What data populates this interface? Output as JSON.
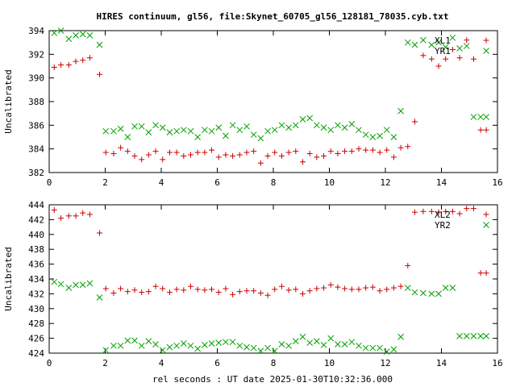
{
  "title": "HIRES continuum, gl56, file:Skynet_60705_gl56_128181_78035.cyb.txt",
  "xlabel": "rel seconds : UT date 2025-01-30T10:32:36.000",
  "colors": {
    "red": "#cc0000",
    "green": "#00a000",
    "axis": "#000000"
  },
  "chart_data": [
    {
      "type": "scatter",
      "ylabel": "Uncalibrated",
      "xlim": [
        0,
        16
      ],
      "ylim": [
        382,
        394
      ],
      "xticks": [
        "0",
        "2",
        "4",
        "6",
        "8",
        "10",
        "12",
        "14",
        "16"
      ],
      "yticks": [
        "382",
        "384",
        "386",
        "388",
        "390",
        "392",
        "394"
      ],
      "grid": false,
      "legend": "top-right",
      "series": [
        {
          "name": "XL1",
          "marker": "plus",
          "color": "#cc0000",
          "x": [
            0.18,
            0.42,
            0.7,
            0.95,
            1.2,
            1.45,
            1.8,
            2.02,
            2.3,
            2.55,
            2.8,
            3.05,
            3.3,
            3.55,
            3.8,
            4.05,
            4.3,
            4.55,
            4.8,
            5.05,
            5.3,
            5.55,
            5.8,
            6.05,
            6.3,
            6.55,
            6.8,
            7.05,
            7.3,
            7.55,
            7.8,
            8.05,
            8.3,
            8.55,
            8.8,
            9.05,
            9.3,
            9.55,
            9.8,
            10.05,
            10.3,
            10.55,
            10.8,
            11.05,
            11.3,
            11.55,
            11.8,
            12.05,
            12.3,
            12.55,
            12.8,
            13.05,
            13.35,
            13.65,
            13.9,
            14.15,
            14.4,
            14.65,
            14.9,
            15.15,
            15.4,
            15.6
          ],
          "y": [
            390.9,
            391.1,
            391.1,
            391.4,
            391.5,
            391.7,
            390.3,
            383.7,
            383.6,
            384.1,
            383.8,
            383.4,
            383.1,
            383.5,
            383.8,
            383.1,
            383.7,
            383.7,
            383.4,
            383.5,
            383.7,
            383.7,
            383.9,
            383.3,
            383.5,
            383.4,
            383.5,
            383.7,
            383.8,
            382.8,
            383.4,
            383.7,
            383.4,
            383.7,
            383.8,
            382.9,
            383.6,
            383.3,
            383.4,
            383.8,
            383.6,
            383.8,
            383.8,
            384.0,
            383.9,
            383.9,
            383.7,
            383.9,
            383.3,
            384.1,
            384.2,
            386.3,
            391.9,
            391.6,
            391.0,
            391.6,
            392.4,
            391.7,
            393.2,
            391.6,
            385.6,
            385.6
          ]
        },
        {
          "name": "YR1",
          "marker": "cross",
          "color": "#00a000",
          "x": [
            0.18,
            0.42,
            0.7,
            0.95,
            1.2,
            1.45,
            1.8,
            2.02,
            2.3,
            2.55,
            2.8,
            3.05,
            3.3,
            3.55,
            3.8,
            4.05,
            4.3,
            4.55,
            4.8,
            5.05,
            5.3,
            5.55,
            5.8,
            6.05,
            6.3,
            6.55,
            6.8,
            7.05,
            7.3,
            7.55,
            7.8,
            8.05,
            8.3,
            8.55,
            8.8,
            9.05,
            9.3,
            9.55,
            9.8,
            10.05,
            10.3,
            10.55,
            10.8,
            11.05,
            11.3,
            11.55,
            11.8,
            12.05,
            12.3,
            12.55,
            12.8,
            13.05,
            13.35,
            13.65,
            13.9,
            14.15,
            14.4,
            14.65,
            14.9,
            15.15,
            15.4,
            15.6
          ],
          "y": [
            393.8,
            394.0,
            393.3,
            393.6,
            393.7,
            393.6,
            392.8,
            385.5,
            385.5,
            385.7,
            385.0,
            385.9,
            385.9,
            385.4,
            386.0,
            385.8,
            385.4,
            385.5,
            385.6,
            385.5,
            385.0,
            385.6,
            385.5,
            385.8,
            385.1,
            386.0,
            385.6,
            385.9,
            385.2,
            384.9,
            385.5,
            385.6,
            386.0,
            385.8,
            386.0,
            386.5,
            386.6,
            386.0,
            385.8,
            385.6,
            386.0,
            385.8,
            386.1,
            385.6,
            385.2,
            385.0,
            385.1,
            385.6,
            385.0,
            387.2,
            393.0,
            392.8,
            393.2,
            392.8,
            393.0,
            392.6,
            393.4,
            392.5,
            392.7,
            386.7,
            386.7,
            386.7
          ]
        }
      ]
    },
    {
      "type": "scatter",
      "ylabel": "Uncalibrated",
      "xlim": [
        0,
        16
      ],
      "ylim": [
        424,
        444
      ],
      "xticks": [
        "0",
        "2",
        "4",
        "6",
        "8",
        "10",
        "12",
        "14",
        "16"
      ],
      "yticks": [
        "424",
        "426",
        "428",
        "430",
        "432",
        "434",
        "436",
        "438",
        "440",
        "442",
        "444"
      ],
      "grid": false,
      "legend": "top-right",
      "series": [
        {
          "name": "XL2",
          "marker": "plus",
          "color": "#cc0000",
          "x": [
            0.18,
            0.42,
            0.7,
            0.95,
            1.2,
            1.45,
            1.8,
            2.02,
            2.3,
            2.55,
            2.8,
            3.05,
            3.3,
            3.55,
            3.8,
            4.05,
            4.3,
            4.55,
            4.8,
            5.05,
            5.3,
            5.55,
            5.8,
            6.05,
            6.3,
            6.55,
            6.8,
            7.05,
            7.3,
            7.55,
            7.8,
            8.05,
            8.3,
            8.55,
            8.8,
            9.05,
            9.3,
            9.55,
            9.8,
            10.05,
            10.3,
            10.55,
            10.8,
            11.05,
            11.3,
            11.55,
            11.8,
            12.05,
            12.3,
            12.55,
            12.8,
            13.05,
            13.35,
            13.65,
            13.9,
            14.15,
            14.4,
            14.65,
            14.9,
            15.15,
            15.4,
            15.6
          ],
          "y": [
            443.3,
            442.2,
            442.5,
            442.5,
            442.9,
            442.7,
            440.2,
            432.7,
            432.1,
            432.7,
            432.3,
            432.5,
            432.2,
            432.3,
            433.0,
            432.7,
            432.2,
            432.6,
            432.5,
            433.0,
            432.6,
            432.5,
            432.6,
            432.2,
            432.7,
            431.9,
            432.3,
            432.4,
            432.4,
            432.1,
            431.8,
            432.6,
            433.0,
            432.5,
            432.6,
            432.0,
            432.4,
            432.7,
            432.8,
            433.2,
            432.9,
            432.7,
            432.6,
            432.6,
            432.8,
            432.9,
            432.4,
            432.6,
            432.8,
            433.0,
            435.8,
            443.0,
            443.1,
            443.1,
            443.0,
            443.1,
            443.1,
            442.8,
            443.5,
            443.5,
            434.8,
            434.8
          ]
        },
        {
          "name": "YR2",
          "marker": "cross",
          "color": "#00a000",
          "x": [
            0.18,
            0.42,
            0.7,
            0.95,
            1.2,
            1.45,
            1.8,
            2.02,
            2.3,
            2.55,
            2.8,
            3.05,
            3.3,
            3.55,
            3.8,
            4.05,
            4.3,
            4.55,
            4.8,
            5.05,
            5.3,
            5.55,
            5.8,
            6.05,
            6.3,
            6.55,
            6.8,
            7.05,
            7.3,
            7.55,
            7.8,
            8.05,
            8.3,
            8.55,
            8.8,
            9.05,
            9.3,
            9.55,
            9.8,
            10.05,
            10.3,
            10.55,
            10.8,
            11.05,
            11.3,
            11.55,
            11.8,
            12.05,
            12.3,
            12.55,
            12.8,
            13.05,
            13.35,
            13.65,
            13.9,
            14.15,
            14.4,
            14.65,
            14.9,
            15.15,
            15.4,
            15.6
          ],
          "y": [
            433.6,
            433.3,
            432.8,
            433.2,
            433.2,
            433.4,
            431.5,
            424.4,
            425.0,
            425.0,
            425.7,
            425.7,
            425.0,
            425.6,
            425.2,
            424.4,
            424.8,
            425.0,
            425.3,
            425.0,
            424.6,
            425.1,
            425.3,
            425.4,
            425.5,
            425.5,
            425.0,
            424.8,
            424.7,
            424.3,
            424.7,
            424.3,
            425.2,
            425.0,
            425.6,
            426.2,
            425.4,
            425.6,
            425.1,
            426.0,
            425.2,
            425.2,
            425.5,
            425.0,
            424.7,
            424.7,
            424.7,
            424.2,
            424.5,
            426.2,
            432.8,
            432.2,
            432.1,
            432.0,
            432.0,
            432.8,
            432.8,
            426.3,
            426.3,
            426.3,
            426.3,
            426.3
          ]
        }
      ]
    }
  ]
}
